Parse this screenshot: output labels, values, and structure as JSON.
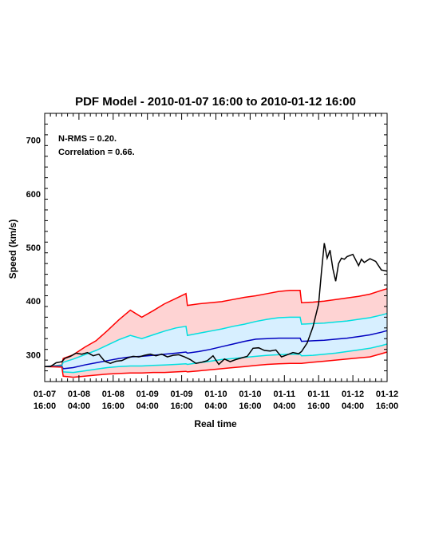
{
  "chart_data": {
    "type": "line",
    "title": "PDF Model - 2010-01-07 16:00 to 2010-01-12 16:00",
    "xlabel": "Real time",
    "ylabel": "Speed (km/s)",
    "xlim": [
      0,
      120
    ],
    "ylim": [
      250,
      750
    ],
    "y_ticks": [
      300,
      400,
      500,
      600,
      700
    ],
    "x_tick_labels": [
      {
        "t": 0,
        "date": "01-07",
        "time": "16:00"
      },
      {
        "t": 12,
        "date": "01-08",
        "time": "04:00"
      },
      {
        "t": 24,
        "date": "01-08",
        "time": "16:00"
      },
      {
        "t": 36,
        "date": "01-09",
        "time": "04:00"
      },
      {
        "t": 48,
        "date": "01-09",
        "time": "16:00"
      },
      {
        "t": 60,
        "date": "01-10",
        "time": "04:00"
      },
      {
        "t": 72,
        "date": "01-10",
        "time": "16:00"
      },
      {
        "t": 84,
        "date": "01-11",
        "time": "04:00"
      },
      {
        "t": 96,
        "date": "01-11",
        "time": "16:00"
      },
      {
        "t": 108,
        "date": "01-12",
        "time": "04:00"
      },
      {
        "t": 120,
        "date": "01-12",
        "time": "16:00"
      }
    ],
    "annotations": [
      "N-RMS = 0.20.",
      "Correlation = 0.66."
    ],
    "x_hours": [
      0,
      6,
      6.5,
      10,
      14,
      18,
      22,
      26,
      30,
      34,
      38,
      42,
      46,
      49.5,
      50,
      54,
      58,
      62,
      66,
      70,
      74,
      78,
      82,
      86,
      89.5,
      90,
      94,
      98,
      102,
      106,
      110,
      114,
      118,
      120
    ],
    "series": [
      {
        "key": "upper_outer",
        "color": "#ff0000",
        "values": [
          278,
          281,
          293,
          300,
          314,
          326,
          345,
          365,
          383,
          370,
          382,
          395,
          405,
          414,
          392,
          395,
          397,
          399,
          403,
          407,
          410,
          414,
          418,
          420,
          420,
          397,
          398,
          400,
          403,
          406,
          409,
          413,
          420,
          423
        ]
      },
      {
        "key": "upper_inner",
        "color": "#00e0e0",
        "values": [
          278,
          280,
          286,
          292,
          300,
          308,
          318,
          328,
          336,
          330,
          337,
          344,
          350,
          353,
          336,
          340,
          344,
          348,
          353,
          357,
          362,
          366,
          369,
          370,
          370,
          357,
          358,
          359,
          361,
          363,
          366,
          369,
          374,
          377
        ]
      },
      {
        "key": "median",
        "color": "#0000c0",
        "values": [
          278,
          279,
          274,
          276,
          281,
          285,
          289,
          293,
          296,
          297,
          299,
          301,
          303,
          305,
          303,
          306,
          310,
          315,
          320,
          325,
          329,
          330,
          331,
          331,
          331,
          325,
          326,
          327,
          329,
          331,
          334,
          337,
          342,
          345
        ]
      },
      {
        "key": "lower_inner",
        "color": "#00e0e0",
        "values": [
          278,
          278,
          268,
          267,
          270,
          273,
          276,
          278,
          279,
          279,
          280,
          281,
          282,
          283,
          282,
          285,
          288,
          291,
          293,
          295,
          297,
          299,
          300,
          301,
          301,
          298,
          299,
          301,
          303,
          306,
          309,
          312,
          317,
          320
        ]
      },
      {
        "key": "lower_outer",
        "color": "#ff0000",
        "values": [
          278,
          277,
          260,
          258,
          260,
          262,
          264,
          265,
          266,
          266,
          267,
          267,
          268,
          269,
          268,
          270,
          272,
          274,
          276,
          278,
          280,
          282,
          283,
          284,
          284,
          284,
          286,
          288,
          290,
          292,
          294,
          296,
          302,
          305
        ]
      }
    ],
    "observed": {
      "color": "#000000",
      "x": [
        0,
        2,
        4,
        6,
        7,
        9,
        11,
        13,
        15,
        17,
        19,
        21,
        23,
        25,
        27,
        29,
        31,
        33,
        35,
        37,
        39,
        41,
        43,
        45,
        47,
        49,
        51,
        53,
        55,
        57,
        59,
        61,
        63,
        65,
        67,
        69,
        71,
        73,
        75,
        77,
        79,
        81,
        83,
        85,
        87,
        89,
        90,
        92,
        94,
        96,
        97,
        98,
        99,
        100,
        101,
        102,
        103,
        104,
        105,
        106,
        108,
        110,
        111,
        112,
        114,
        116,
        118,
        120
      ],
      "y": [
        278,
        278,
        285,
        287,
        293,
        297,
        303,
        301,
        304,
        298,
        301,
        288,
        284,
        288,
        289,
        294,
        297,
        296,
        299,
        301,
        298,
        301,
        296,
        299,
        300,
        296,
        291,
        284,
        286,
        289,
        298,
        282,
        292,
        287,
        291,
        294,
        297,
        312,
        313,
        308,
        307,
        309,
        296,
        300,
        304,
        302,
        306,
        322,
        352,
        395,
        455,
        508,
        480,
        495,
        460,
        437,
        470,
        480,
        478,
        483,
        487,
        466,
        478,
        472,
        479,
        474,
        458,
        456
      ]
    }
  }
}
